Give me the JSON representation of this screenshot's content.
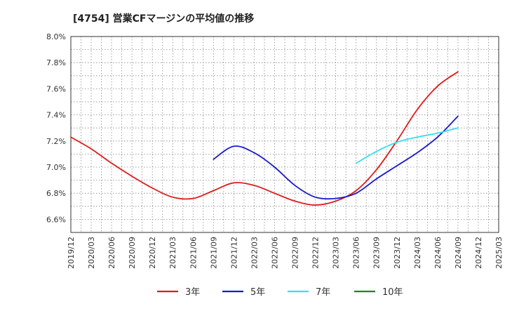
{
  "chart_data": {
    "type": "line",
    "title": "[4754]  営業CFマージンの平均値の推移",
    "xlabel": "",
    "ylabel": "",
    "x_ticks": [
      "2019/12",
      "2020/03",
      "2020/06",
      "2020/09",
      "2020/12",
      "2021/03",
      "2021/06",
      "2021/09",
      "2021/12",
      "2022/03",
      "2022/06",
      "2022/09",
      "2022/12",
      "2023/03",
      "2023/06",
      "2023/09",
      "2023/12",
      "2024/03",
      "2024/06",
      "2024/09",
      "2024/12",
      "2025/03"
    ],
    "y_ticks": [
      "6.6%",
      "6.8%",
      "7.0%",
      "7.2%",
      "7.4%",
      "7.6%",
      "7.8%",
      "8.0%"
    ],
    "y_tick_values": [
      6.6,
      6.8,
      7.0,
      7.2,
      7.4,
      7.6,
      7.8,
      8.0
    ],
    "ylim": [
      6.5,
      8.0
    ],
    "grid": true,
    "legend_position": "bottom",
    "series": [
      {
        "name": "3年",
        "color": "#e01c1c",
        "x": [
          "2019/12",
          "2020/03",
          "2020/06",
          "2020/09",
          "2020/12",
          "2021/03",
          "2021/06",
          "2021/09",
          "2021/12",
          "2022/03",
          "2022/06",
          "2022/09",
          "2022/12",
          "2023/03",
          "2023/06",
          "2023/09",
          "2023/12",
          "2024/03",
          "2024/06",
          "2024/09"
        ],
        "values": [
          7.23,
          7.14,
          7.03,
          6.93,
          6.84,
          6.77,
          6.76,
          6.82,
          6.88,
          6.86,
          6.8,
          6.74,
          6.71,
          6.74,
          6.82,
          6.98,
          7.2,
          7.44,
          7.62,
          7.73
        ]
      },
      {
        "name": "5年",
        "color": "#1a1acc",
        "x": [
          "2021/09",
          "2021/12",
          "2022/03",
          "2022/06",
          "2022/09",
          "2022/12",
          "2023/03",
          "2023/06",
          "2023/09",
          "2023/12",
          "2024/03",
          "2024/06",
          "2024/09"
        ],
        "values": [
          7.06,
          7.16,
          7.11,
          7.0,
          6.86,
          6.77,
          6.76,
          6.8,
          6.91,
          7.01,
          7.11,
          7.23,
          7.39
        ]
      },
      {
        "name": "7年",
        "color": "#33e0ee",
        "x": [
          "2023/06",
          "2023/09",
          "2023/12",
          "2024/03",
          "2024/06",
          "2024/09"
        ],
        "values": [
          7.03,
          7.12,
          7.19,
          7.23,
          7.26,
          7.3
        ]
      },
      {
        "name": "10年",
        "color": "#1a8a1a",
        "x": [],
        "values": []
      }
    ]
  }
}
